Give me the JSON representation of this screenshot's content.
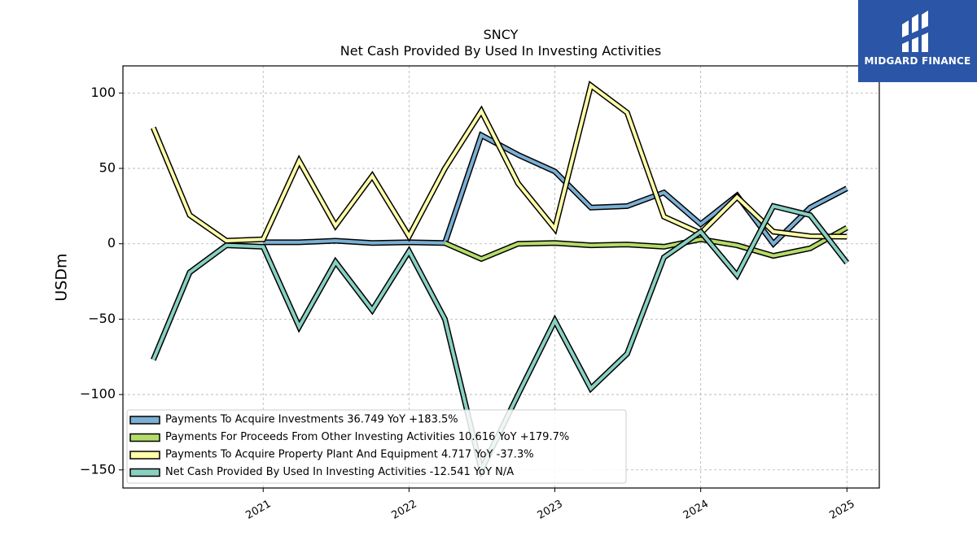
{
  "brand": {
    "name": "MIDGARD FINANCE",
    "background": "#2b55a6"
  },
  "chart_data": {
    "type": "line",
    "title": "SNCY",
    "subtitle": "Net Cash Provided By Used In Investing Activities",
    "ylabel": "USDm",
    "xlabel": "",
    "ylim": [
      -162,
      118
    ],
    "yticks": [
      100,
      50,
      0,
      -50,
      -100,
      -150
    ],
    "ytick_labels": [
      "100",
      "50",
      "0",
      "−50",
      "−100",
      "−150"
    ],
    "xlim": [
      "2020-01-16",
      "2025-03-23"
    ],
    "xticks": [
      "2021-01-01",
      "2022-01-01",
      "2023-01-01",
      "2024-01-01",
      "2025-01-01"
    ],
    "xtick_labels": [
      "2021",
      "2022",
      "2023",
      "2024",
      "2025"
    ],
    "grid": true,
    "legend_position": "bottom-left",
    "series": [
      {
        "name": "Payments To Acquire Investments",
        "legend_label": "Payments To Acquire Investments  36.749 YoY +183.5%",
        "color": "#7bafd4",
        "x": [
          "2021-01-01",
          "2021-04-01",
          "2021-07-01",
          "2021-10-01",
          "2022-01-01",
          "2022-04-01",
          "2022-07-01",
          "2022-10-01",
          "2023-01-01",
          "2023-04-01",
          "2023-07-01",
          "2023-10-01",
          "2024-01-01",
          "2024-04-01",
          "2024-07-01",
          "2024-10-01",
          "2025-01-01"
        ],
        "y": [
          1,
          1,
          2,
          0.5,
          1,
          0.5,
          72,
          59,
          48,
          24,
          25,
          34,
          13,
          32,
          0,
          24,
          36.749
        ]
      },
      {
        "name": "Payments For Proceeds From Other Investing Activities",
        "legend_label": "Payments For Proceeds From Other Investing Activities  10.616 YoY +179.7%",
        "color": "#b5dc6a",
        "x": [
          "2022-04-01",
          "2022-07-01",
          "2022-10-01",
          "2023-01-01",
          "2023-04-01",
          "2023-07-01",
          "2023-10-01",
          "2024-01-01",
          "2024-04-01",
          "2024-07-01",
          "2024-10-01",
          "2025-01-01"
        ],
        "y": [
          0.5,
          -10,
          0,
          0.5,
          -1,
          -0.5,
          -2,
          3,
          -1,
          -8,
          -3,
          10.616
        ]
      },
      {
        "name": "Payments To Acquire Property Plant And Equipment",
        "legend_label": "Payments To Acquire Property Plant And Equipment  4.717 YoY -37.3%",
        "color": "#ffffaa",
        "x": [
          "2020-04-01",
          "2020-07-01",
          "2020-10-01",
          "2021-01-01",
          "2021-04-01",
          "2021-07-01",
          "2021-10-01",
          "2022-01-01",
          "2022-04-01",
          "2022-07-01",
          "2022-10-01",
          "2023-01-01",
          "2023-04-01",
          "2023-07-01",
          "2023-10-01",
          "2024-01-01",
          "2024-04-01",
          "2024-07-01",
          "2024-10-01",
          "2025-01-01"
        ],
        "y": [
          77,
          19,
          2,
          3,
          55,
          12,
          45,
          5,
          50,
          88,
          40,
          10,
          105,
          87,
          18,
          7,
          31,
          8,
          5,
          4.717
        ]
      },
      {
        "name": "Net Cash Provided By Used In Investing Activities",
        "legend_label": "Net Cash Provided By Used In Investing Activities  -12.541 YoY N/A",
        "color": "#88d0c2",
        "x": [
          "2020-04-01",
          "2020-07-01",
          "2020-10-01",
          "2021-01-01",
          "2021-04-01",
          "2021-07-01",
          "2021-10-01",
          "2022-01-01",
          "2022-04-01",
          "2022-07-01",
          "2022-10-01",
          "2023-01-01",
          "2023-04-01",
          "2023-07-01",
          "2023-10-01",
          "2024-01-01",
          "2024-04-01",
          "2024-07-01",
          "2024-10-01",
          "2025-01-01"
        ],
        "y": [
          -77,
          -19,
          -1,
          -2,
          -55,
          -12,
          -44,
          -5,
          -50,
          -150,
          -100,
          -51,
          -96,
          -73,
          -9,
          8,
          -21,
          25,
          19,
          -12.541
        ]
      }
    ]
  }
}
